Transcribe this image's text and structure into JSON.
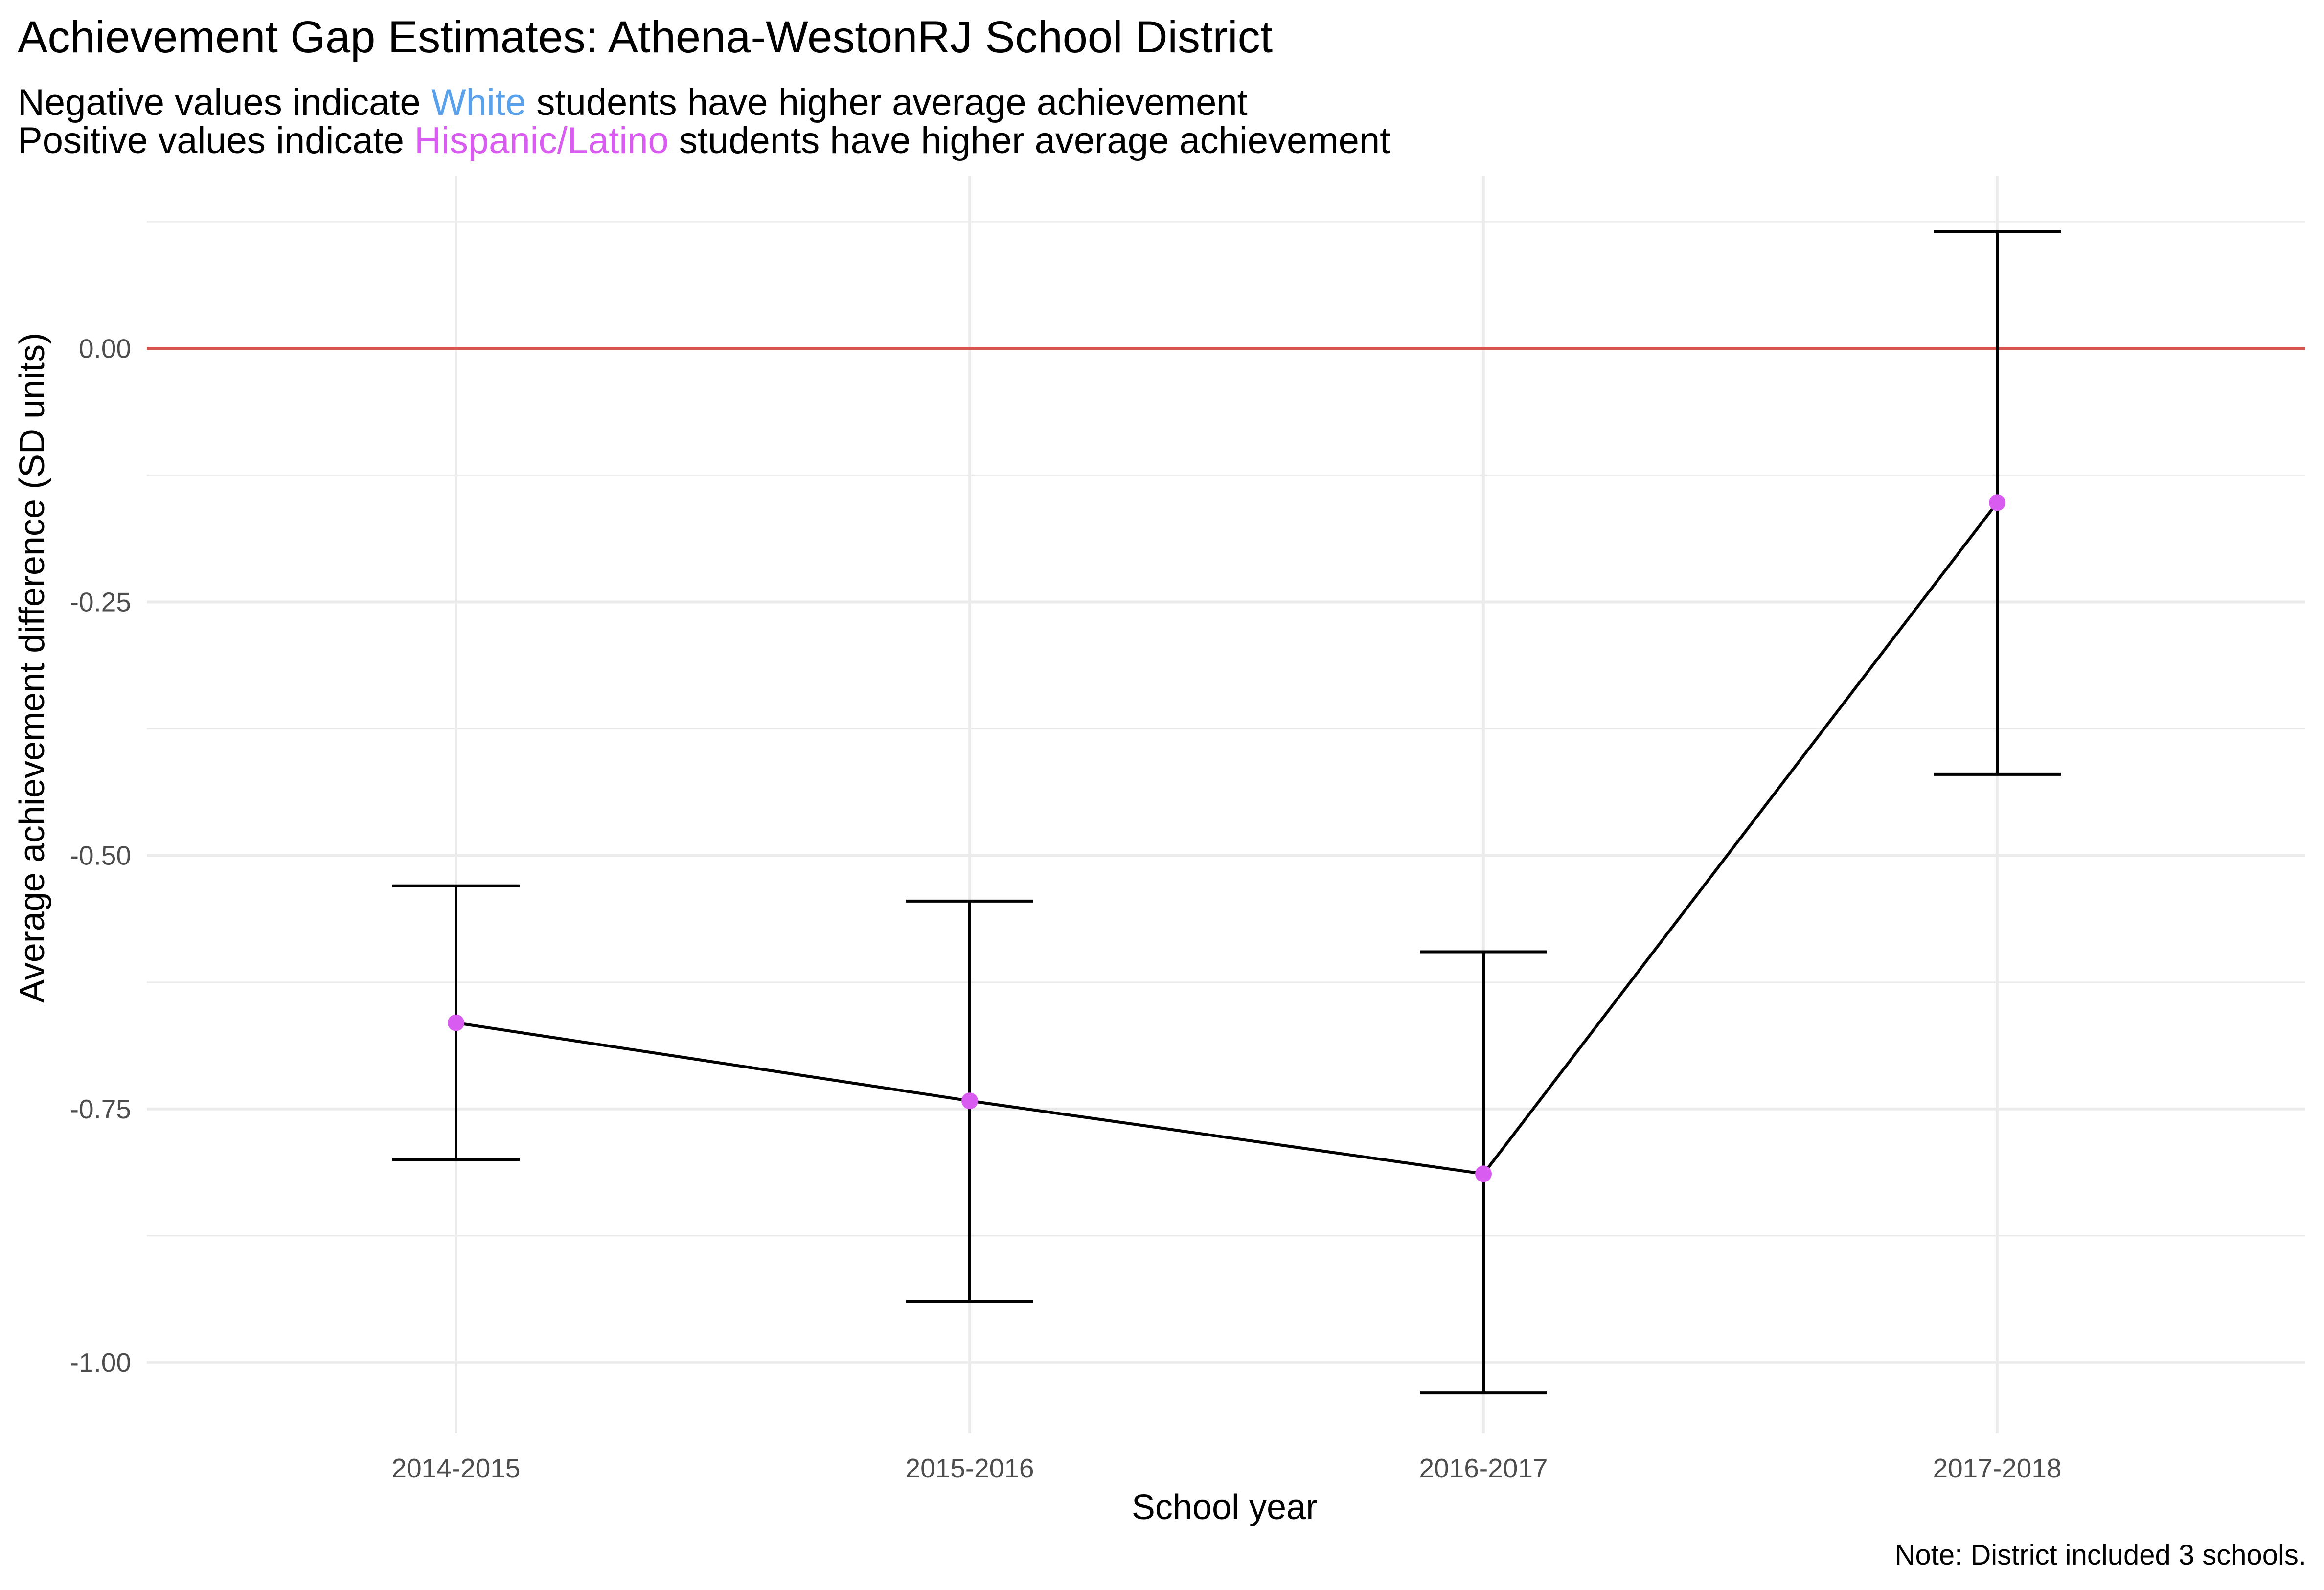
{
  "chart_data": {
    "type": "line",
    "title": "Achievement Gap Estimates: Athena-WestonRJ School District",
    "subtitle": {
      "line1": {
        "before": "Negative values indicate",
        "highlight": "White",
        "after": "students have higher average achievement"
      },
      "line2": {
        "before": "Positive values indicate",
        "highlight": "Hispanic/Latino",
        "after": "students have higher average achievement"
      }
    },
    "xlabel": "School year",
    "ylabel": "Average achievement difference (SD units)",
    "caption": "Note: District included 3 schools.",
    "categories": [
      "2014-2015",
      "2015-2016",
      "2016-2017",
      "2017-2018"
    ],
    "values": [
      -0.665,
      -0.742,
      -0.814,
      -0.152
    ],
    "error_lower": [
      -0.8,
      -0.94,
      -1.03,
      -0.42
    ],
    "error_upper": [
      -0.53,
      -0.545,
      -0.595,
      0.115
    ],
    "ylim": [
      -1.07,
      0.17
    ],
    "yticks": [
      0.0,
      -0.25,
      -0.5,
      -0.75,
      -1.0
    ],
    "ytick_labels": [
      "0.00",
      "-0.25",
      "-0.50",
      "-0.75",
      "-1.00"
    ],
    "reference_line": 0.0,
    "grid": true,
    "colors": {
      "white_highlight": "#5aa1ec",
      "hispanic_highlight": "#d95cf0",
      "point": "#d95cf0",
      "line": "#000000",
      "reference_line": "#d9534f",
      "grid": "#ebebeb"
    }
  }
}
